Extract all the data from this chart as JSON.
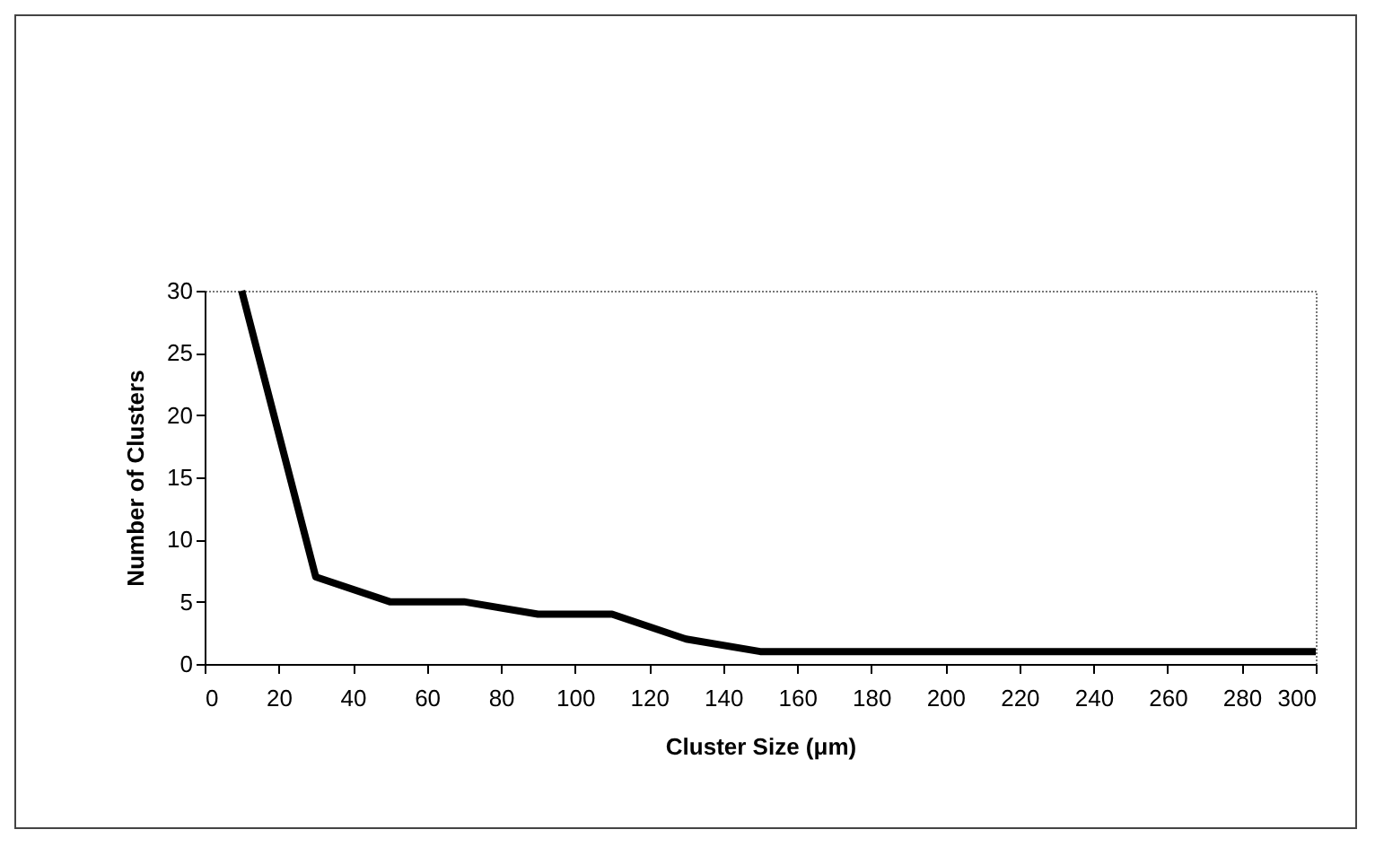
{
  "chart_data": {
    "type": "line",
    "xlabel": "Cluster Size (μm)",
    "ylabel": "Number of Clusters",
    "x": [
      10,
      30,
      50,
      70,
      90,
      110,
      130,
      150,
      300
    ],
    "series": [
      {
        "color": "#000000",
        "values": [
          30,
          7,
          5,
          5,
          4,
          4,
          2,
          1,
          1
        ]
      }
    ],
    "xlim": [
      0,
      300
    ],
    "xticks": [
      0,
      20,
      40,
      60,
      80,
      100,
      120,
      140,
      160,
      180,
      200,
      220,
      240,
      260,
      280,
      300
    ],
    "ylim": [
      0,
      30
    ],
    "yticks": [
      0,
      5,
      10,
      15,
      20,
      25,
      30
    ],
    "grid": false,
    "legend": false,
    "marker": "none",
    "line_style": "solid"
  }
}
